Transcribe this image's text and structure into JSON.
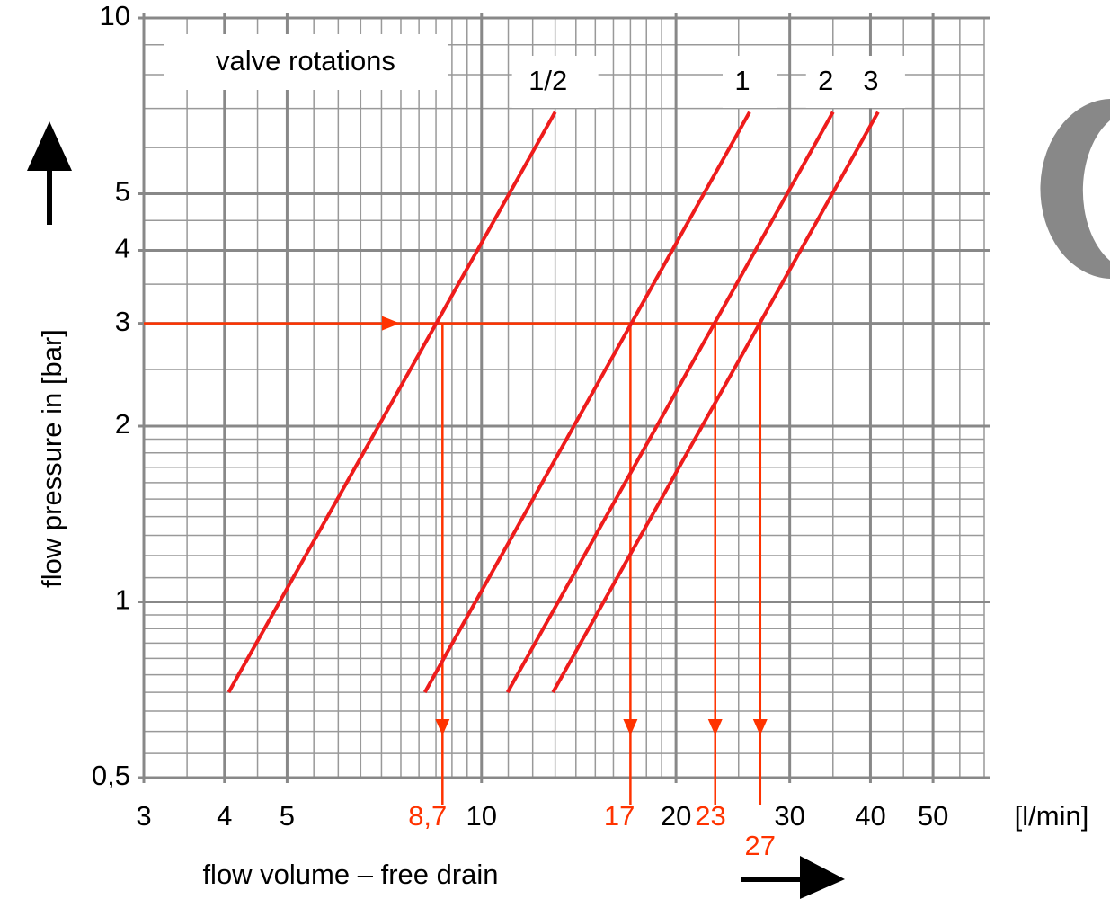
{
  "chart_data": {
    "type": "line",
    "xscale": "log",
    "yscale": "log",
    "grid": true,
    "xlim": [
      3,
      60
    ],
    "ylim": [
      0.5,
      10
    ],
    "xticks": [
      3,
      4,
      5,
      10,
      20,
      30,
      40,
      50
    ],
    "yticks": [
      {
        "value": 0.5,
        "label": "0,5"
      },
      1,
      2,
      3,
      4,
      5,
      10
    ],
    "x_minor_grid": [
      3.5,
      4.5,
      5.5,
      6,
      6.5,
      7,
      7.5,
      8,
      8.5,
      9,
      9.5,
      11,
      12,
      13,
      14,
      15,
      16,
      17,
      18,
      19,
      25,
      35,
      45,
      55,
      60
    ],
    "y_minor_grid": [
      0.55,
      0.6,
      0.65,
      0.7,
      0.75,
      0.8,
      0.85,
      0.9,
      0.95,
      1.1,
      1.2,
      1.3,
      1.4,
      1.5,
      1.6,
      1.7,
      1.8,
      1.9,
      2.5,
      3.5,
      4.5,
      6,
      7,
      8,
      9
    ],
    "xlabel": "flow volume – free drain",
    "ylabel": "flow pressure in [bar]",
    "xunit": "[l/min]",
    "legend_title": "valve rotations",
    "series": [
      {
        "name": "1/2",
        "color": "#ee1c1c",
        "x": [
          4.06,
          13.0
        ],
        "values": [
          0.7,
          6.9
        ]
      },
      {
        "name": "1",
        "color": "#ee1c1c",
        "x": [
          8.17,
          26.0
        ],
        "values": [
          0.7,
          6.9
        ]
      },
      {
        "name": "2",
        "color": "#ee1c1c",
        "x": [
          10.97,
          35.0
        ],
        "values": [
          0.7,
          6.9
        ]
      },
      {
        "name": "3",
        "color": "#ee1c1c",
        "x": [
          12.9,
          41.1
        ],
        "values": [
          0.7,
          6.9
        ]
      }
    ],
    "readings": {
      "color": "#ff3300",
      "pressure": 3,
      "flows": [
        8.7,
        17,
        23,
        27
      ],
      "value_labels": [
        "8,7",
        "17",
        "23",
        "27"
      ]
    }
  }
}
